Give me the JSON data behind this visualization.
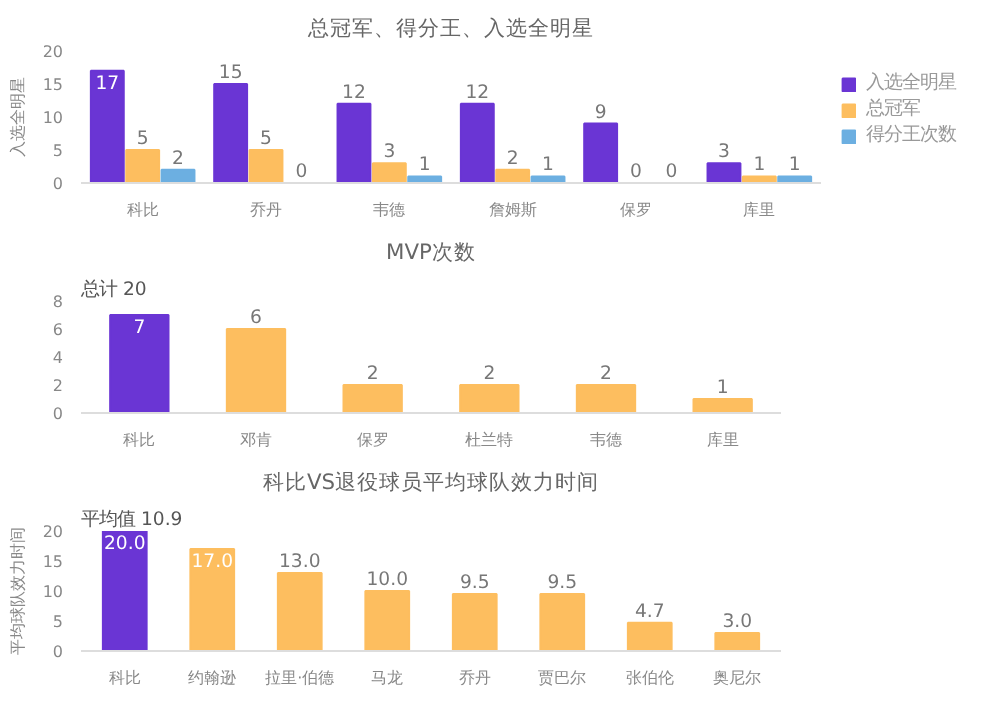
{
  "chart_data": [
    {
      "type": "bar",
      "title": "总冠军、得分王、入选全明星",
      "ylabel": "入选全明星",
      "categories": [
        "科比",
        "乔丹",
        "韦德",
        "詹姆斯",
        "保罗",
        "库里"
      ],
      "series": [
        {
          "name": "入选全明星",
          "color": "#6a35d4",
          "values": [
            17,
            15,
            12,
            12,
            9,
            3
          ]
        },
        {
          "name": "总冠军",
          "color": "#fdbe5f",
          "values": [
            5,
            5,
            3,
            2,
            0,
            1
          ]
        },
        {
          "name": "得分王次数",
          "color": "#6cafe1",
          "values": [
            2,
            0,
            1,
            1,
            0,
            1
          ]
        }
      ],
      "ylim": [
        0,
        20
      ],
      "yticks": [
        0,
        5,
        10,
        15,
        20
      ],
      "data_labels": true,
      "legend": "top right"
    },
    {
      "type": "bar",
      "title": "MVP次数",
      "annotations": [
        "总计  20"
      ],
      "categories": [
        "科比",
        "邓肯",
        "保罗",
        "杜兰特",
        "韦德",
        "库里"
      ],
      "values": [
        7,
        6,
        2,
        2,
        2,
        1
      ],
      "colors": [
        "#6a35d4",
        "#fdbe5f",
        "#fdbe5f",
        "#fdbe5f",
        "#fdbe5f",
        "#fdbe5f"
      ],
      "ylim": [
        0,
        8
      ],
      "yticks": [
        0,
        2,
        4,
        6,
        8
      ],
      "data_labels": true
    },
    {
      "type": "bar",
      "title": "科比VS退役球员平均球队效力时间",
      "annotations": [
        "平均值  10.9"
      ],
      "ylabel": "平均球队效力时间",
      "categories": [
        "科比",
        "约翰逊",
        "拉里·伯德",
        "马龙",
        "乔丹",
        "贾巴尔",
        "张伯伦",
        "奥尼尔"
      ],
      "values": [
        20.0,
        17.0,
        13.0,
        10.0,
        9.5,
        9.5,
        4.7,
        3.0
      ],
      "colors": [
        "#6a35d4",
        "#fdbe5f",
        "#fdbe5f",
        "#fdbe5f",
        "#fdbe5f",
        "#fdbe5f",
        "#fdbe5f",
        "#fdbe5f"
      ],
      "value_labels": [
        "20.0",
        "17.0",
        "13.0",
        "10.0",
        "9.5",
        "9.5",
        "4.7",
        "3.0"
      ],
      "ylim": [
        0,
        20
      ],
      "yticks": [
        0,
        5,
        10,
        15,
        20
      ]
    }
  ]
}
